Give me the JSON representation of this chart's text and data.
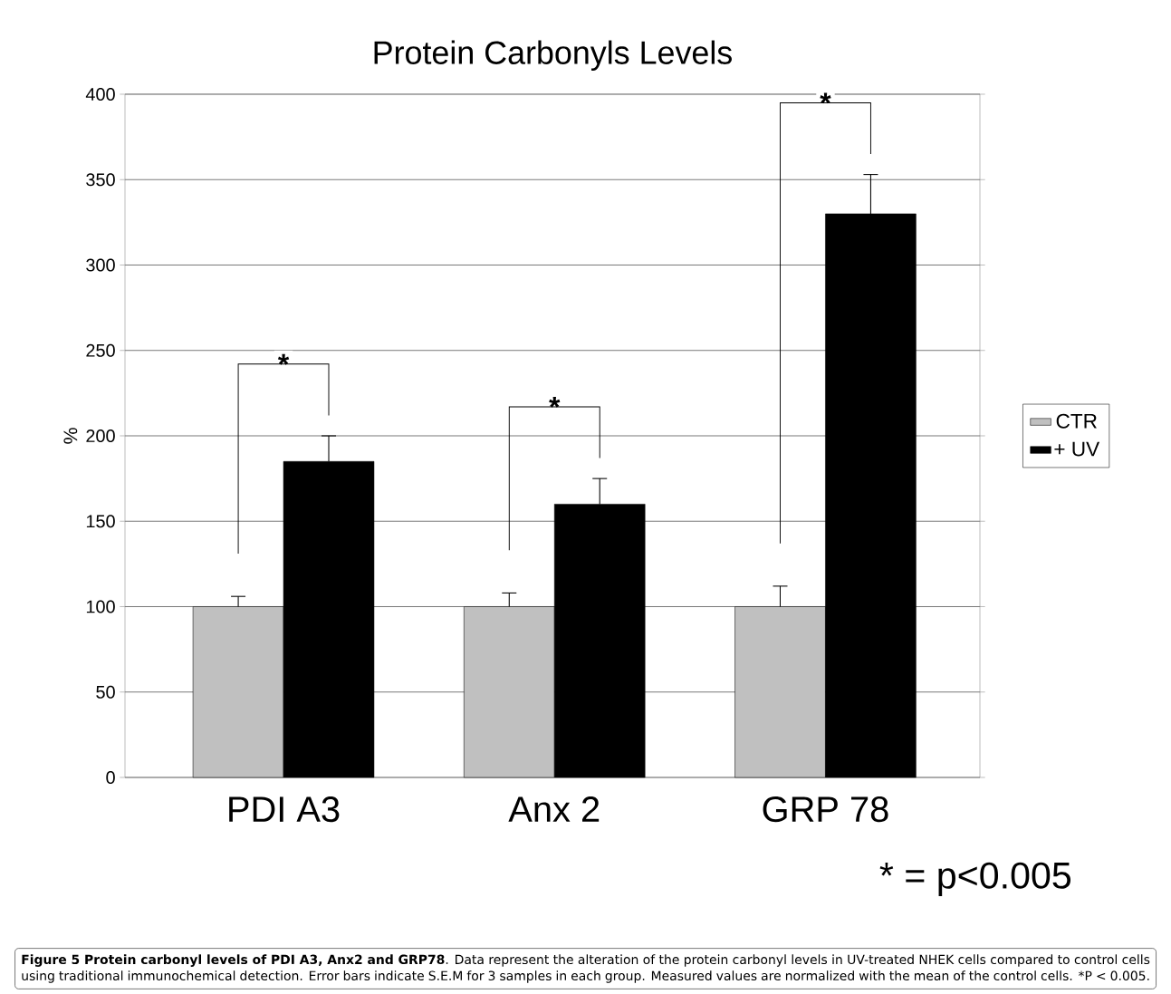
{
  "chart_data": {
    "type": "bar",
    "title": "Protein Carbonyls Levels",
    "ylabel": "%",
    "categories": [
      "PDI A3",
      "Anx 2",
      "GRP 78"
    ],
    "series": [
      {
        "name": "CTR",
        "color": "#c0c0c0",
        "values": [
          100,
          100,
          100
        ],
        "errors": [
          6,
          8,
          12
        ]
      },
      {
        "name": "+ UV",
        "color": "#000000",
        "values": [
          185,
          160,
          330
        ],
        "errors": [
          15,
          15,
          23
        ]
      }
    ],
    "ylim": [
      0,
      400
    ],
    "yticks": [
      0,
      50,
      100,
      150,
      200,
      250,
      300,
      350,
      400
    ],
    "grid": "y",
    "legend": "right",
    "annotations": [
      "*",
      "*",
      "*",
      "* = p<0.005",
      "**Figure 5 Protein carbonyl levels of PDI A3, Anx2 and GRP78**. Data represent the alteration of the protein carbonyl levels in UV-treated NHEK cells compared to control cells using traditional immunochemical detection. Error bars indicate S.E.M for 3 samples in each group. Measured values are normalized with the mean of the control cells. *P < 0.005."
    ]
  }
}
